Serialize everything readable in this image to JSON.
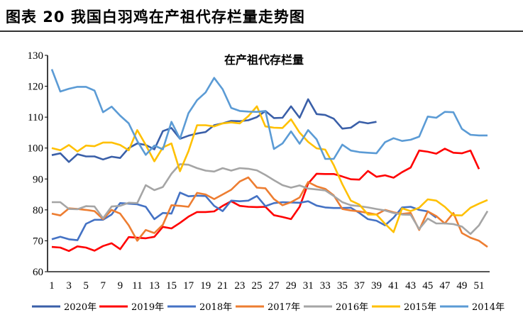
{
  "figure_title": "图表 20  我国白羽鸡在产祖代存栏量走势图",
  "chart_data": {
    "type": "line",
    "title": "在产祖代存栏量",
    "xlabel": "",
    "ylabel": "",
    "ylim": [
      60,
      130
    ],
    "yticks": [
      60,
      70,
      80,
      90,
      100,
      110,
      120,
      130
    ],
    "xticks": [
      1,
      3,
      5,
      7,
      9,
      11,
      13,
      15,
      17,
      19,
      21,
      23,
      25,
      27,
      29,
      31,
      33,
      35,
      37,
      39,
      41,
      43,
      45,
      47,
      49,
      51
    ],
    "grid": false,
    "legend_position": "bottom",
    "series": [
      {
        "name": "2020年",
        "color": "#3a5fa8",
        "values": [
          97.7,
          98.3,
          95.5,
          98,
          97.3,
          97.3,
          96.3,
          97.2,
          96.8,
          100,
          101.5,
          101,
          99.6,
          105.5,
          106.5,
          103,
          104,
          104.7,
          105.2,
          107.4,
          108,
          108.8,
          108.7,
          109,
          110,
          112,
          109.7,
          109.8,
          113.5,
          109.8,
          115.8,
          111,
          110.7,
          109.5,
          106.3,
          106.6,
          108.5,
          108,
          108.5
        ]
      },
      {
        "name": "2019年",
        "color": "#ff0000",
        "values": [
          68,
          67.8,
          66.7,
          68.2,
          67.8,
          66.8,
          68.3,
          69.2,
          67.3,
          71.2,
          71,
          70.8,
          71.3,
          74.5,
          74,
          75.8,
          77.8,
          79.3,
          79.3,
          79.5,
          81.3,
          82.8,
          81.3,
          81,
          80.9,
          81,
          78.3,
          77.7,
          77,
          81,
          88.5,
          91.7,
          91.6,
          91.6,
          90.8,
          89.9,
          89.8,
          92.6,
          90.7,
          91.2,
          90.4,
          92.2,
          93.7,
          99.2,
          98.8,
          98.2,
          99.8,
          98.5,
          98.3,
          99.2,
          93.2
        ]
      },
      {
        "name": "2018年",
        "color": "#4472c4",
        "values": [
          70.5,
          71.3,
          70.5,
          70.2,
          75.5,
          76.8,
          76.8,
          78.5,
          82.2,
          82,
          81.8,
          81,
          77,
          79,
          78.8,
          85.6,
          84.4,
          84.6,
          84.5,
          81.3,
          79.6,
          83,
          82.8,
          83,
          84.5,
          81.2,
          82.2,
          82.5,
          82.4,
          82.3,
          82.8,
          81.4,
          80.8,
          80.6,
          80.6,
          80.7,
          79,
          77,
          76.5,
          75,
          77.5,
          80.8,
          81,
          80,
          79.5,
          77.5
        ]
      },
      {
        "name": "2017年",
        "color": "#ed7d31",
        "values": [
          78.8,
          78.2,
          80.5,
          80.3,
          80,
          79.6,
          77,
          80,
          78.8,
          75,
          70,
          73.5,
          72.5,
          75.2,
          81.5,
          81.3,
          81,
          85.5,
          85,
          83.5,
          85,
          86.5,
          89.2,
          90.5,
          87.2,
          87,
          83.5,
          81.5,
          82.5,
          84,
          89,
          87.6,
          86.8,
          84.7,
          80.3,
          79.8,
          79.5,
          79,
          78.5,
          80,
          79.2,
          78.7,
          79,
          73.5,
          79.5,
          78,
          75.6,
          79,
          72.5,
          71,
          70,
          68
        ]
      },
      {
        "name": "2016年",
        "color": "#a5a5a5",
        "values": [
          82.5,
          82.5,
          80.3,
          80.2,
          81.2,
          81.1,
          77.3,
          81.1,
          81.3,
          82.3,
          82.2,
          88,
          86.4,
          87.4,
          91.7,
          94.8,
          94.6,
          93.5,
          92.7,
          92.4,
          93.5,
          92.7,
          93.5,
          93.3,
          92.8,
          91.3,
          89.6,
          88,
          87.2,
          87.9,
          86.9,
          86.6,
          86.3,
          84.5,
          82.5,
          81.5,
          81.2,
          80.8,
          80.3,
          79.8,
          79,
          78.5,
          78.4,
          73.8,
          77.2,
          75.6,
          75.6,
          75.4,
          74.6,
          72.2,
          75,
          79.6
        ]
      },
      {
        "name": "2015年",
        "color": "#ffc000",
        "values": [
          100,
          99.3,
          101,
          98.9,
          100.8,
          100.6,
          101.8,
          101.8,
          101,
          99.3,
          105.8,
          101,
          95.7,
          100.2,
          101.5,
          92.5,
          99,
          107.4,
          107.4,
          107,
          108,
          108.3,
          108,
          110.3,
          113.5,
          107,
          106.6,
          106.5,
          109.3,
          105,
          102,
          99.9,
          99.5,
          94.5,
          88.3,
          83,
          81.7,
          78.5,
          78.5,
          75.5,
          72.8,
          80.5,
          79.6,
          80.7,
          83.4,
          83,
          81,
          78.3,
          78.2,
          80.7,
          82,
          83.2
        ]
      },
      {
        "name": "2014年",
        "color": "#5b9bd5",
        "values": [
          125.5,
          118.3,
          119.2,
          119.8,
          119.8,
          118.6,
          111.6,
          113.4,
          110.5,
          108,
          102.3,
          97.8,
          100.8,
          99.6,
          108.5,
          103,
          111.3,
          115.5,
          118,
          122.7,
          119,
          113,
          112,
          111.8,
          111.7,
          112,
          99.7,
          101.5,
          105.4,
          101.4,
          105.8,
          102.8,
          96.5,
          96.5,
          101.1,
          99.2,
          98.7,
          98.5,
          98.3,
          101.9,
          103.2,
          102.3,
          102.7,
          103.7,
          110.2,
          109.8,
          111.7,
          111.6,
          106.2,
          104.3,
          104.1,
          104.1
        ]
      }
    ]
  }
}
